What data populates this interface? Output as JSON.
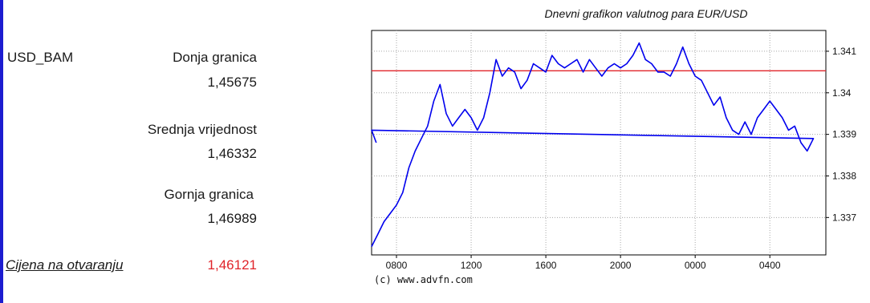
{
  "accent_color": "#1c1cd0",
  "rates": {
    "pair": "USD_BAM",
    "lower_label": "Donja granica",
    "lower_value": "1,45675",
    "mid_label": "Srednja vrijednost",
    "mid_value": "1,46332",
    "upper_label": "Gornja granica",
    "upper_value": "1,46989",
    "open_label": "Cijena na otvaranju",
    "open_value": "1,46121",
    "open_value_color": "#e0242a"
  },
  "chart_title": "Dnevni grafikon valutnog para EUR/USD",
  "chart_data": {
    "type": "line",
    "title": "Dnevni grafikon valutnog para EUR/USD",
    "credit": "(c) www.advfn.com",
    "x_ticks": [
      "0800",
      "1200",
      "1600",
      "2000",
      "0000",
      "0400"
    ],
    "y_ticks": [
      "1.337",
      "1.338",
      "1.339",
      "1.34",
      "1.341"
    ],
    "ylim": [
      1.3361,
      1.3415
    ],
    "grid": true,
    "reference_line": {
      "value": 1.34053,
      "color": "#e0242a"
    },
    "series": [
      {
        "color": "#0000ee",
        "x": [
          "06:40",
          "07:00",
          "07:20",
          "07:40",
          "08:00",
          "08:20",
          "08:40",
          "09:00",
          "09:20",
          "09:40",
          "10:00",
          "10:20",
          "10:40",
          "11:00",
          "11:20",
          "11:40",
          "12:00",
          "12:20",
          "12:40",
          "13:00",
          "13:20",
          "13:40",
          "14:00",
          "14:20",
          "14:40",
          "15:00",
          "15:20",
          "15:40",
          "16:00",
          "16:20",
          "16:40",
          "17:00",
          "17:20",
          "17:40",
          "18:00",
          "18:20",
          "18:40",
          "19:00",
          "19:20",
          "19:40",
          "20:00",
          "20:20",
          "20:40",
          "21:00",
          "21:20",
          "21:40",
          "22:00",
          "22:20",
          "22:40",
          "23:00",
          "23:20",
          "23:40",
          "00:00",
          "00:20",
          "00:40",
          "01:00",
          "01:20",
          "01:40",
          "02:00",
          "02:20",
          "02:40",
          "03:00",
          "03:20",
          "03:40",
          "04:00",
          "04:20",
          "04:40",
          "05:00",
          "05:20",
          "05:40",
          "06:00",
          "06:20",
          "06:40",
          "06:55"
        ],
        "y": [
          1.3363,
          1.3366,
          1.3369,
          1.3371,
          1.3373,
          1.3376,
          1.3382,
          1.3386,
          1.3389,
          1.3392,
          1.3398,
          1.3402,
          1.3395,
          1.3392,
          1.3394,
          1.3396,
          1.3394,
          1.3391,
          1.3394,
          1.34,
          1.3408,
          1.3404,
          1.3406,
          1.3405,
          1.3401,
          1.3403,
          1.3407,
          1.3406,
          1.3405,
          1.3409,
          1.3407,
          1.3406,
          1.3407,
          1.3408,
          1.3405,
          1.3408,
          1.3406,
          1.3404,
          1.3406,
          1.3407,
          1.3406,
          1.3407,
          1.3409,
          1.3412,
          1.3408,
          1.3407,
          1.3405,
          1.3405,
          1.3404,
          1.3407,
          1.3411,
          1.3407,
          1.3404,
          1.3403,
          1.34,
          1.3397,
          1.3399,
          1.3394,
          1.3391,
          1.339,
          1.3393,
          1.339,
          1.3394,
          1.3396,
          1.3398,
          1.3396,
          1.3394,
          1.3391,
          1.3392,
          1.3388,
          1.3386,
          1.3389,
          1.3391,
          1.3388
        ]
      }
    ]
  }
}
